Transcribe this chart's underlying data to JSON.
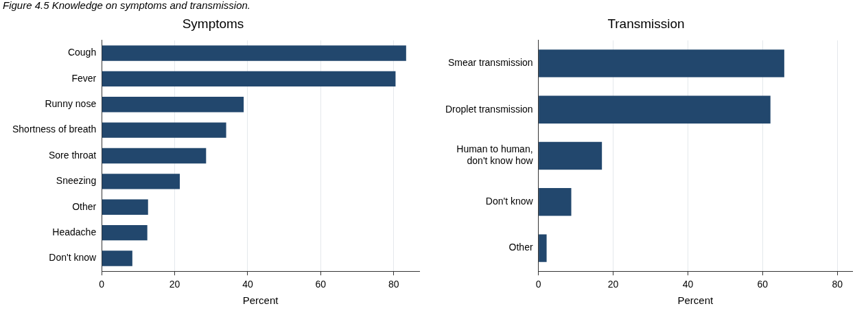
{
  "chart_data": [
    {
      "type": "bar",
      "orientation": "horizontal",
      "title": "Symptoms",
      "xlabel": "Percent",
      "annotations": [
        "Figure 4.5 Knowledge on symptoms and transmission."
      ],
      "categories": [
        "Cough",
        "Fever",
        "Runny nose",
        "Shortness of breath",
        "Sore throat",
        "Sneezing",
        "Other",
        "Headache",
        "Don't know"
      ],
      "values": [
        83.4,
        80.5,
        38.9,
        34.1,
        28.6,
        21.4,
        12.7,
        12.5,
        8.4
      ],
      "color": "#22476d",
      "xlim": [
        0,
        87
      ],
      "xticks": [
        0,
        20,
        40,
        60,
        80
      ],
      "grid": "x"
    },
    {
      "type": "bar",
      "orientation": "horizontal",
      "title": "Transmission",
      "xlabel": "Percent",
      "categories": [
        "Smear transmission",
        "Droplet transmission",
        "Human to human,\ndon't know how",
        "Don't know",
        "Other"
      ],
      "values": [
        65.8,
        62.1,
        17.0,
        8.8,
        2.2
      ],
      "color": "#22476d",
      "xlim": [
        0,
        84
      ],
      "xticks": [
        0,
        20,
        40,
        60,
        80
      ],
      "grid": "x"
    }
  ]
}
